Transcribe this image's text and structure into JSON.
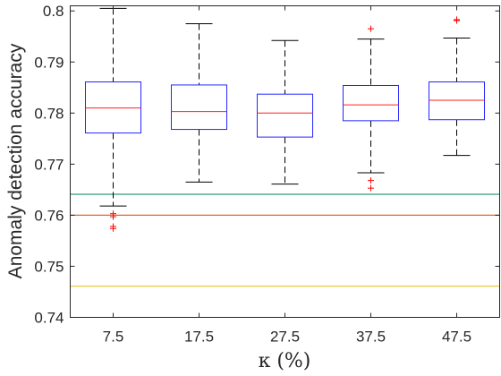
{
  "chart_data": {
    "type": "box",
    "title": "",
    "xlabel": "κ (%)",
    "ylabel": "Anomaly detection accuracy",
    "categories": [
      "7.5",
      "17.5",
      "27.5",
      "37.5",
      "47.5"
    ],
    "ylim": [
      0.74,
      0.801
    ],
    "yticks": [
      0.74,
      0.75,
      0.76,
      0.77,
      0.78,
      0.79,
      0.8
    ],
    "ytick_labels": [
      "0.74",
      "0.75",
      "0.76",
      "0.77",
      "0.78",
      "0.79",
      "0.8"
    ],
    "boxes": [
      {
        "category": "7.5",
        "whisker_low": 0.7618,
        "q1": 0.7761,
        "median": 0.781,
        "q3": 0.7861,
        "whisker_high": 0.8005,
        "outliers": [
          0.7603,
          0.7597,
          0.7578,
          0.7574
        ]
      },
      {
        "category": "17.5",
        "whisker_low": 0.7665,
        "q1": 0.7768,
        "median": 0.7803,
        "q3": 0.7855,
        "whisker_high": 0.7975,
        "outliers": []
      },
      {
        "category": "27.5",
        "whisker_low": 0.7661,
        "q1": 0.7753,
        "median": 0.78,
        "q3": 0.7837,
        "whisker_high": 0.7942,
        "outliers": []
      },
      {
        "category": "37.5",
        "whisker_low": 0.7683,
        "q1": 0.7785,
        "median": 0.7816,
        "q3": 0.7854,
        "whisker_high": 0.7945,
        "outliers": [
          0.7965,
          0.7668,
          0.7653
        ]
      },
      {
        "category": "47.5",
        "whisker_low": 0.7717,
        "q1": 0.7787,
        "median": 0.7825,
        "q3": 0.7861,
        "whisker_high": 0.7947,
        "outliers": [
          0.7983,
          0.7981
        ]
      }
    ],
    "reference_lines": [
      {
        "value": 0.7641,
        "color": "#2e9e78"
      },
      {
        "value": 0.76,
        "color": "#e8642c"
      },
      {
        "value": 0.7461,
        "color": "#e8c22a"
      }
    ],
    "colors": {
      "box": "#2626ff",
      "median": "#ff2020",
      "whisker": "#000000",
      "outlier": "#ff0000",
      "axes": "#262626"
    },
    "grid": false
  }
}
